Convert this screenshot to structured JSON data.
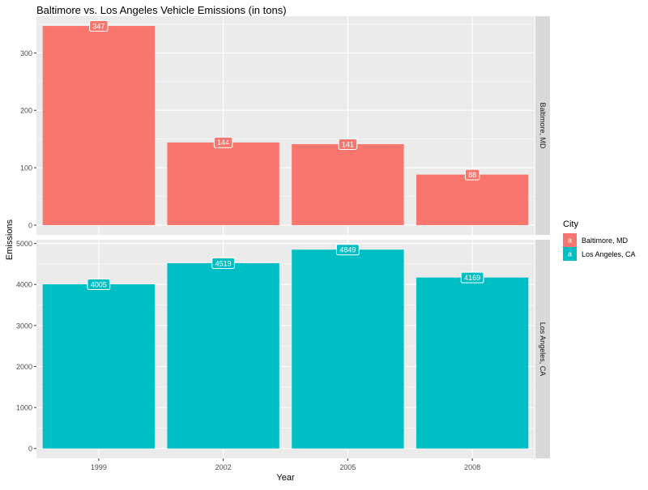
{
  "chart_data": {
    "type": "bar",
    "title": "Baltimore vs. Los Angeles Vehicle Emissions (in tons)",
    "xlabel": "Year",
    "ylabel": "Emissions",
    "categories": [
      "1999",
      "2002",
      "2005",
      "2008"
    ],
    "facet_layout": "rows",
    "legend": {
      "title": "City",
      "position": "right",
      "key_glyph": "a",
      "entries": [
        "Baltimore, MD",
        "Los Angeles, CA"
      ]
    },
    "panels": [
      {
        "strip_label": "Baltimore, MD",
        "color": "#F8766D",
        "values": [
          347,
          144,
          141,
          88
        ],
        "ylim": [
          -17,
          364
        ],
        "yticks": [
          0,
          100,
          200,
          300
        ]
      },
      {
        "strip_label": "Los Angeles, CA",
        "color": "#00BFC4",
        "values": [
          4005,
          4519,
          4849,
          4169
        ],
        "ylim": [
          -242,
          5091
        ],
        "yticks": [
          0,
          1000,
          2000,
          3000,
          4000,
          5000
        ]
      }
    ],
    "grid": true,
    "panel_background": "#EBEBEB",
    "strip_background": "#D9D9D9"
  }
}
